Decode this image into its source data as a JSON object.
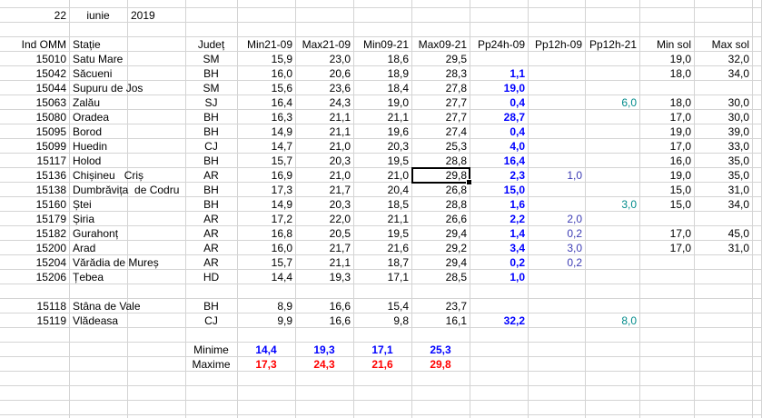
{
  "date": {
    "day": "22",
    "month": "iunie",
    "year": "2019"
  },
  "table": {
    "header": [
      "Ind OMM",
      "Stație",
      "Județ",
      "Min21-09",
      "Max21-09",
      "Min09-21",
      "Max09-21",
      "Pp24h-09",
      "Pp12h-09",
      "Pp12h-21",
      "Min sol",
      "Max sol"
    ],
    "groups": [
      [
        [
          "15010",
          "Satu Mare",
          "SM",
          "15,9",
          "23,0",
          "18,6",
          "29,5",
          null,
          null,
          null,
          "19,0",
          "32,0"
        ],
        [
          "15042",
          "Săcueni",
          "BH",
          "16,0",
          "20,6",
          "18,9",
          "28,3",
          "1,1",
          null,
          null,
          "18,0",
          "34,0"
        ],
        [
          "15044",
          "Supuru de Jos",
          "SM",
          "15,6",
          "23,6",
          "18,4",
          "27,8",
          "19,0",
          null,
          null,
          null,
          null
        ],
        [
          "15063",
          "Zalău",
          "SJ",
          "16,4",
          "24,3",
          "19,0",
          "27,7",
          "0,4",
          null,
          "6,0",
          "18,0",
          "30,0"
        ],
        [
          "15080",
          "Oradea",
          "BH",
          "16,3",
          "21,1",
          "21,1",
          "27,7",
          "28,7",
          null,
          null,
          "17,0",
          "30,0"
        ],
        [
          "15095",
          "Borod",
          "BH",
          "14,9",
          "21,1",
          "19,6",
          "27,4",
          "0,4",
          null,
          null,
          "19,0",
          "39,0"
        ],
        [
          "15099",
          "Huedin",
          "CJ",
          "14,7",
          "21,0",
          "20,3",
          "25,3",
          "4,0",
          null,
          null,
          "17,0",
          "33,0"
        ],
        [
          "15117",
          "Holod",
          "BH",
          "15,7",
          "20,3",
          "19,5",
          "28,8",
          "16,4",
          null,
          null,
          "16,0",
          "35,0"
        ],
        [
          "15136",
          "Chișineu   Criș",
          "AR",
          "16,9",
          "21,0",
          "21,0",
          "29,8",
          "2,3",
          "1,0",
          null,
          "19,0",
          "35,0"
        ],
        [
          "15138",
          "Dumbrăvița  de Codru",
          "BH",
          "17,3",
          "21,7",
          "20,4",
          "26,8",
          "15,0",
          null,
          null,
          "15,0",
          "31,0"
        ],
        [
          "15160",
          "Ștei",
          "BH",
          "14,9",
          "20,3",
          "18,5",
          "28,8",
          "1,6",
          null,
          "3,0",
          "15,0",
          "34,0"
        ],
        [
          "15179",
          "Șiria",
          "AR",
          "17,2",
          "22,0",
          "21,1",
          "26,6",
          "2,2",
          "2,0",
          null,
          null,
          null
        ],
        [
          "15182",
          "Gurahonț",
          "AR",
          "16,8",
          "20,5",
          "19,5",
          "29,4",
          "1,4",
          "0,2",
          null,
          "17,0",
          "45,0"
        ],
        [
          "15200",
          "Arad",
          "AR",
          "16,0",
          "21,7",
          "21,6",
          "29,2",
          "3,4",
          "3,0",
          null,
          "17,0",
          "31,0"
        ],
        [
          "15204",
          "Vărădia de Mureș",
          "AR",
          "15,7",
          "21,1",
          "18,7",
          "29,4",
          "0,2",
          "0,2",
          null,
          null,
          null
        ],
        [
          "15206",
          "Țebea",
          "HD",
          "14,4",
          "19,3",
          "17,1",
          "28,5",
          "1,0",
          null,
          null,
          null,
          null
        ]
      ],
      [
        [
          "15118",
          "Stâna de Vale",
          "BH",
          "8,9",
          "16,6",
          "15,4",
          "23,7",
          null,
          null,
          null,
          null,
          null
        ],
        [
          "15119",
          "Vlădeasa",
          "CJ",
          "9,9",
          "16,6",
          "9,8",
          "16,1",
          "32,2",
          null,
          "8,0",
          null,
          null
        ]
      ]
    ]
  },
  "summary": {
    "minime": {
      "label": "Minime",
      "values": [
        "14,4",
        "19,3",
        "17,1",
        "25,3"
      ]
    },
    "maxime": {
      "label": "Maxime",
      "values": [
        "17,3",
        "24,3",
        "21,6",
        "29,8"
      ]
    }
  }
}
